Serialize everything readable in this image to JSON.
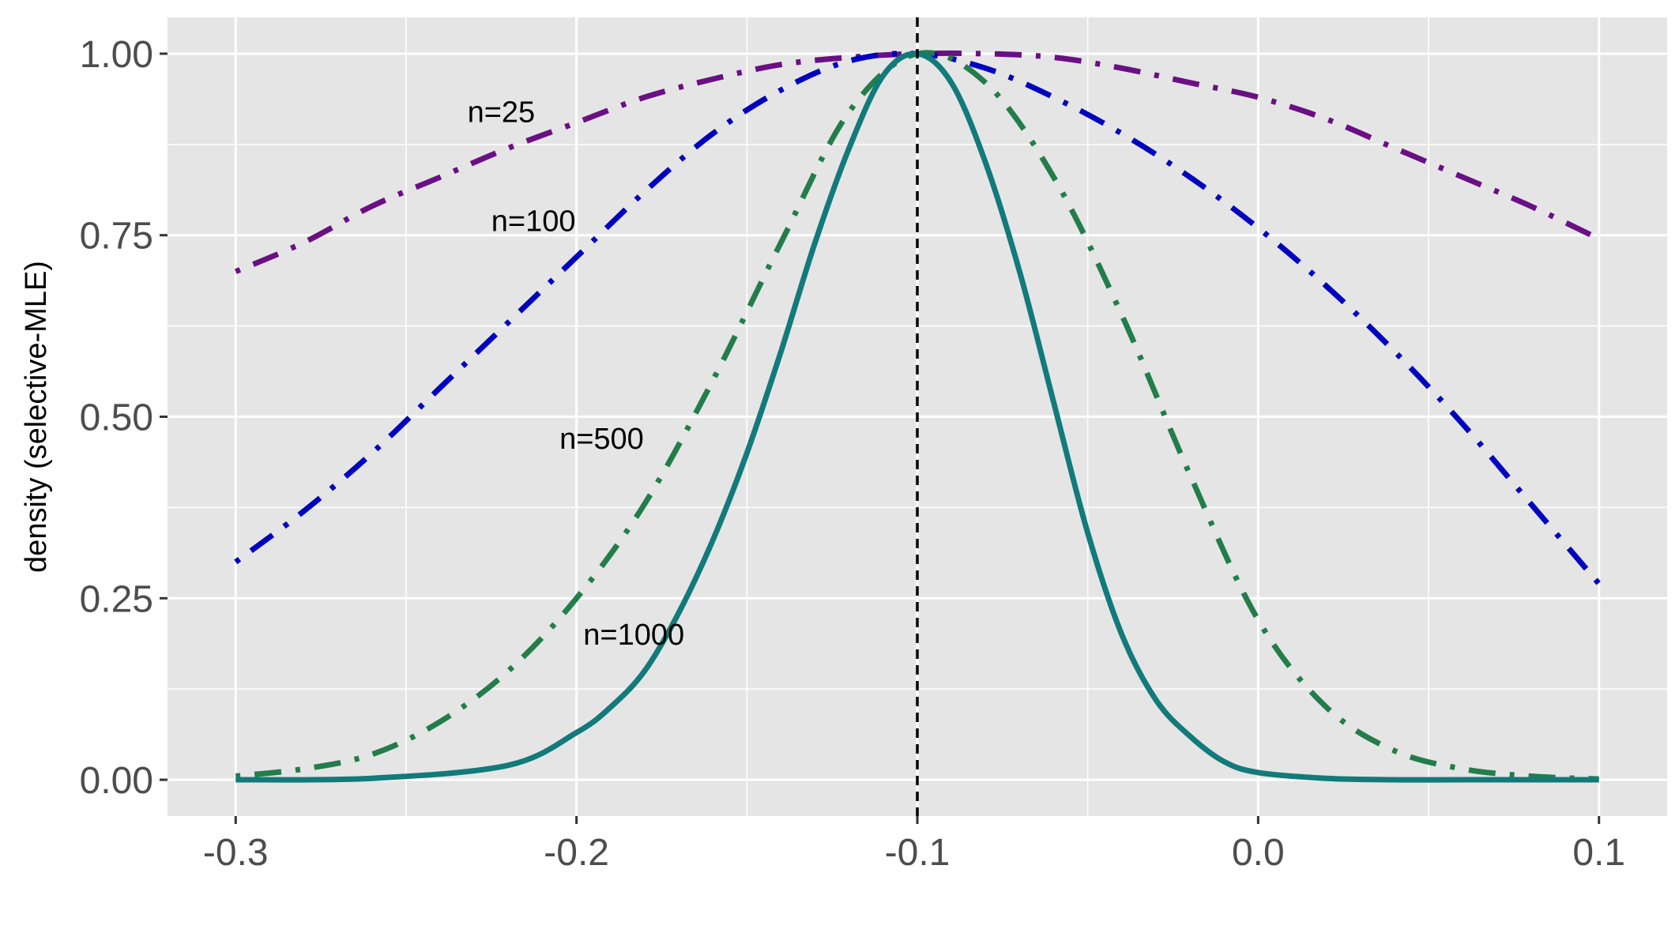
{
  "chart_data": {
    "type": "line",
    "title": "",
    "xlabel": "",
    "ylabel": "density (selective-MLE)",
    "xlim": [
      -0.32,
      0.12
    ],
    "ylim": [
      -0.05,
      1.05
    ],
    "x_ticks": [
      -0.3,
      -0.2,
      -0.1,
      0.0,
      0.1
    ],
    "x_tick_labels": [
      "-0.3",
      "-0.2",
      "-0.1",
      "0.0",
      "0.1"
    ],
    "y_ticks": [
      0,
      0.25,
      0.5,
      0.75,
      1.0
    ],
    "y_tick_labels": [
      "0.00",
      "0.25",
      "0.50",
      "0.75",
      "1.00"
    ],
    "x_minor": [
      -0.25,
      -0.15,
      -0.05,
      0.05
    ],
    "y_minor": [
      0.125,
      0.375,
      0.625,
      0.875
    ],
    "grid": true,
    "background": "#e5e5e5",
    "vline": {
      "x": -0.1,
      "style": "dashed",
      "color": "#000000"
    },
    "series": [
      {
        "label": "n=25",
        "color": "#6a0f84",
        "style": "dotdash",
        "x": [
          -0.3,
          -0.28,
          -0.26,
          -0.24,
          -0.22,
          -0.2,
          -0.18,
          -0.16,
          -0.14,
          -0.12,
          -0.1,
          -0.08,
          -0.06,
          -0.04,
          -0.02,
          0.0,
          0.02,
          0.04,
          0.06,
          0.08,
          0.1
        ],
        "y": [
          0.7,
          0.74,
          0.79,
          0.83,
          0.87,
          0.905,
          0.94,
          0.965,
          0.985,
          0.995,
          1.0,
          1.0,
          0.995,
          0.98,
          0.96,
          0.94,
          0.91,
          0.87,
          0.83,
          0.79,
          0.745
        ]
      },
      {
        "label": "n=100",
        "color": "#0000c0",
        "style": "dotdash",
        "x": [
          -0.3,
          -0.28,
          -0.26,
          -0.24,
          -0.22,
          -0.2,
          -0.18,
          -0.16,
          -0.14,
          -0.12,
          -0.1,
          -0.08,
          -0.06,
          -0.04,
          -0.02,
          0.0,
          0.02,
          0.04,
          0.06,
          0.08,
          0.1
        ],
        "y": [
          0.3,
          0.37,
          0.45,
          0.54,
          0.63,
          0.72,
          0.81,
          0.89,
          0.95,
          0.99,
          1.0,
          0.98,
          0.94,
          0.89,
          0.83,
          0.76,
          0.68,
          0.59,
          0.49,
          0.38,
          0.27
        ]
      },
      {
        "label": "n=500",
        "color": "#237d4a",
        "style": "dotdash",
        "x": [
          -0.3,
          -0.28,
          -0.26,
          -0.24,
          -0.22,
          -0.2,
          -0.18,
          -0.16,
          -0.14,
          -0.12,
          -0.1,
          -0.08,
          -0.06,
          -0.04,
          -0.02,
          0.0,
          0.02,
          0.04,
          0.06,
          0.08,
          0.1
        ],
        "y": [
          0.005,
          0.015,
          0.035,
          0.08,
          0.15,
          0.25,
          0.38,
          0.55,
          0.74,
          0.92,
          1.0,
          0.96,
          0.83,
          0.64,
          0.42,
          0.22,
          0.1,
          0.04,
          0.015,
          0.005,
          0.001
        ]
      },
      {
        "label": "n=1000",
        "color": "#127a7a",
        "style": "solid",
        "x": [
          -0.3,
          -0.26,
          -0.22,
          -0.2,
          -0.19,
          -0.18,
          -0.17,
          -0.16,
          -0.15,
          -0.14,
          -0.13,
          -0.12,
          -0.11,
          -0.1,
          -0.09,
          -0.08,
          -0.07,
          -0.06,
          -0.05,
          -0.04,
          -0.03,
          -0.02,
          -0.01,
          0.0,
          0.02,
          0.04,
          0.06,
          0.1
        ],
        "y": [
          0.0,
          0.002,
          0.02,
          0.065,
          0.1,
          0.15,
          0.23,
          0.33,
          0.45,
          0.59,
          0.74,
          0.87,
          0.97,
          1.0,
          0.96,
          0.85,
          0.7,
          0.52,
          0.34,
          0.2,
          0.11,
          0.06,
          0.025,
          0.01,
          0.002,
          0.0,
          0.0,
          0.0
        ]
      }
    ],
    "annotations": [
      {
        "text": "n=25",
        "x": -0.232,
        "y": 0.92
      },
      {
        "text": "n=100",
        "x": -0.225,
        "y": 0.77
      },
      {
        "text": "n=500",
        "x": -0.205,
        "y": 0.47
      },
      {
        "text": "n=1000",
        "x": -0.198,
        "y": 0.2
      }
    ]
  }
}
